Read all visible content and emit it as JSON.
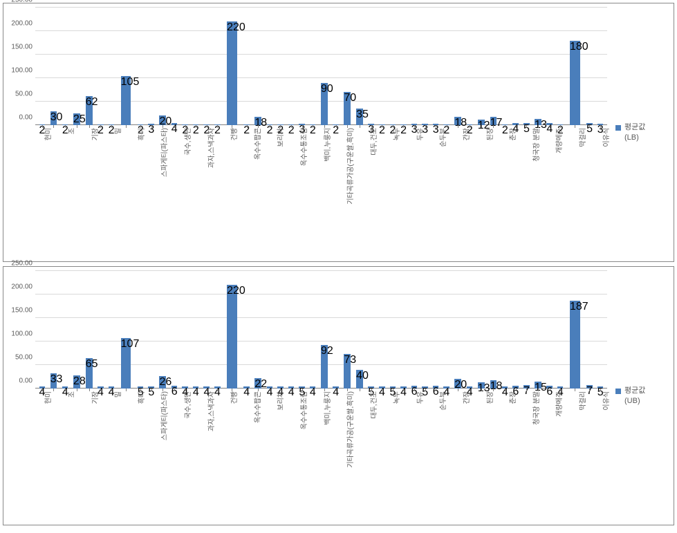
{
  "colors": {
    "bar": "#4a7ebb",
    "grid": "#d9d9d9",
    "axis": "#808080",
    "text": "#595959",
    "panel_border": "#888888",
    "background": "#ffffff"
  },
  "y_axis": {
    "min": 0,
    "max": 250,
    "tick_step": 50,
    "tick_labels": [
      "0.00",
      "50.00",
      "100.00",
      "150.00",
      "200.00",
      "250.00"
    ],
    "tick_fontsize": 10
  },
  "x_axis": {
    "label_fontsize": 10,
    "rotation_deg": -90
  },
  "categories": [
    "현미",
    "보리",
    "조",
    "수수",
    "기장",
    "찹쌀",
    "밀",
    "율무",
    "흑미",
    "국수,건조",
    "스파게티(파스타)",
    "메밀국수",
    "국수,생면",
    "냉면",
    "과자,스낵과자",
    "떡",
    "건빵",
    "빵",
    "옥수수팝콘",
    "시리얼",
    "보리차",
    "현미차",
    "옥수수통조림",
    "미숫가루",
    "백미,누룽지",
    "선식",
    "기타곡류가공(구운쌀,흑미)",
    "누룽지",
    "대두,건조",
    "두부",
    "녹두",
    "팥",
    "두유",
    "콩나물",
    "순두부",
    "콩국",
    "간장",
    "고추장",
    "된장",
    "쌈장",
    "춘장",
    "청국장",
    "청국장 분말",
    "메주",
    "개량메주",
    "콩비지",
    "막걸리",
    "소면",
    "이유식"
  ],
  "charts": [
    {
      "legend_label": "평균값",
      "legend_sub": "(LB)",
      "values": [
        2,
        30,
        2,
        25,
        62,
        2,
        2,
        105,
        2,
        3,
        20,
        4,
        2,
        2,
        2,
        2,
        220,
        2,
        18,
        2,
        2,
        2,
        3,
        2,
        90,
        2,
        70,
        35,
        3,
        2,
        2,
        2,
        3,
        3,
        3,
        2,
        18,
        2,
        12,
        17,
        2,
        4,
        5,
        13,
        4,
        2,
        180,
        5,
        3
      ]
    },
    {
      "legend_label": "평균값",
      "legend_sub": "(UB)",
      "values": [
        4,
        33,
        4,
        28,
        65,
        4,
        4,
        107,
        5,
        5,
        26,
        6,
        4,
        4,
        4,
        4,
        220,
        4,
        22,
        4,
        4,
        4,
        5,
        4,
        92,
        4,
        73,
        40,
        5,
        4,
        5,
        4,
        6,
        5,
        6,
        4,
        20,
        4,
        13,
        18,
        4,
        6,
        7,
        15,
        6,
        4,
        187,
        7,
        5
      ]
    }
  ]
}
